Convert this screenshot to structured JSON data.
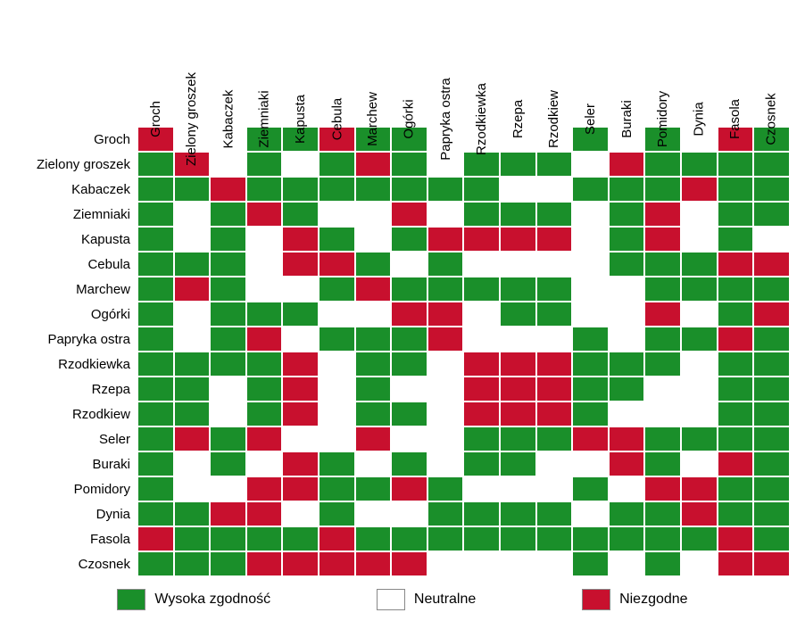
{
  "chart": {
    "type": "heatmap",
    "cell_size": 28,
    "row_label_width": 142,
    "col_header_height": 130,
    "label_fontsize": 15,
    "legend_fontsize": 16,
    "background_color": "#ffffff",
    "grid_line_color": "#ffffff",
    "swatch_border_color": "#888888",
    "colors": {
      "good": "#1a8f2a",
      "neutral": "#ffffff",
      "bad": "#c8102e"
    },
    "labels": [
      "Groch",
      "Zielony groszek",
      "Kabaczek",
      "Ziemniaki",
      "Kapusta",
      "Cebula",
      "Marchew",
      "Ogórki",
      "Papryka ostra",
      "Rzodkiewka",
      "Rzepa",
      "Rzodkiew",
      "Seler",
      "Buraki",
      "Pomidory",
      "Dynia",
      "Fasola",
      "Czosnek"
    ],
    "matrix": [
      [
        2,
        0,
        0,
        1,
        1,
        2,
        1,
        1,
        0,
        0,
        0,
        0,
        1,
        0,
        1,
        0,
        2,
        1
      ],
      [
        1,
        2,
        0,
        1,
        0,
        1,
        2,
        1,
        0,
        1,
        1,
        1,
        0,
        2,
        1,
        1,
        1,
        1
      ],
      [
        1,
        1,
        2,
        1,
        1,
        1,
        1,
        1,
        1,
        1,
        0,
        0,
        1,
        1,
        1,
        2,
        1,
        1
      ],
      [
        1,
        0,
        1,
        2,
        1,
        0,
        0,
        2,
        0,
        1,
        1,
        1,
        0,
        1,
        2,
        0,
        1,
        1
      ],
      [
        1,
        0,
        1,
        0,
        2,
        1,
        0,
        1,
        2,
        2,
        2,
        2,
        0,
        1,
        2,
        0,
        1,
        0
      ],
      [
        1,
        1,
        1,
        0,
        2,
        2,
        1,
        0,
        1,
        0,
        0,
        0,
        0,
        1,
        1,
        1,
        2,
        2
      ],
      [
        1,
        2,
        1,
        0,
        0,
        1,
        2,
        1,
        1,
        1,
        1,
        1,
        0,
        0,
        1,
        1,
        1,
        1
      ],
      [
        1,
        0,
        1,
        1,
        1,
        0,
        0,
        2,
        2,
        0,
        1,
        1,
        0,
        0,
        2,
        0,
        1,
        2
      ],
      [
        1,
        0,
        1,
        2,
        0,
        1,
        1,
        1,
        2,
        0,
        0,
        0,
        1,
        0,
        1,
        1,
        2,
        1
      ],
      [
        1,
        1,
        1,
        1,
        2,
        0,
        1,
        1,
        0,
        2,
        2,
        2,
        1,
        1,
        1,
        0,
        1,
        1
      ],
      [
        1,
        1,
        0,
        1,
        2,
        0,
        1,
        0,
        0,
        2,
        2,
        2,
        1,
        1,
        0,
        0,
        1,
        1
      ],
      [
        1,
        1,
        0,
        1,
        2,
        0,
        1,
        1,
        0,
        2,
        2,
        2,
        1,
        0,
        0,
        0,
        1,
        1
      ],
      [
        1,
        2,
        1,
        2,
        0,
        0,
        2,
        0,
        0,
        1,
        1,
        1,
        2,
        2,
        1,
        1,
        1,
        1
      ],
      [
        1,
        0,
        1,
        0,
        2,
        1,
        0,
        1,
        0,
        1,
        1,
        0,
        0,
        2,
        1,
        0,
        2,
        1
      ],
      [
        1,
        0,
        0,
        2,
        2,
        1,
        1,
        2,
        1,
        0,
        0,
        0,
        1,
        0,
        2,
        2,
        1,
        1
      ],
      [
        1,
        1,
        2,
        2,
        0,
        1,
        0,
        0,
        1,
        1,
        1,
        1,
        0,
        1,
        1,
        2,
        1,
        1
      ],
      [
        2,
        1,
        1,
        1,
        1,
        2,
        1,
        1,
        1,
        1,
        1,
        1,
        1,
        1,
        1,
        1,
        2,
        1
      ],
      [
        1,
        1,
        1,
        2,
        2,
        2,
        2,
        2,
        0,
        0,
        0,
        0,
        1,
        0,
        1,
        0,
        2,
        2
      ]
    ],
    "legend": {
      "good": "Wysoka zgodność",
      "neutral": "Neutralne",
      "bad": "Niezgodne"
    }
  }
}
